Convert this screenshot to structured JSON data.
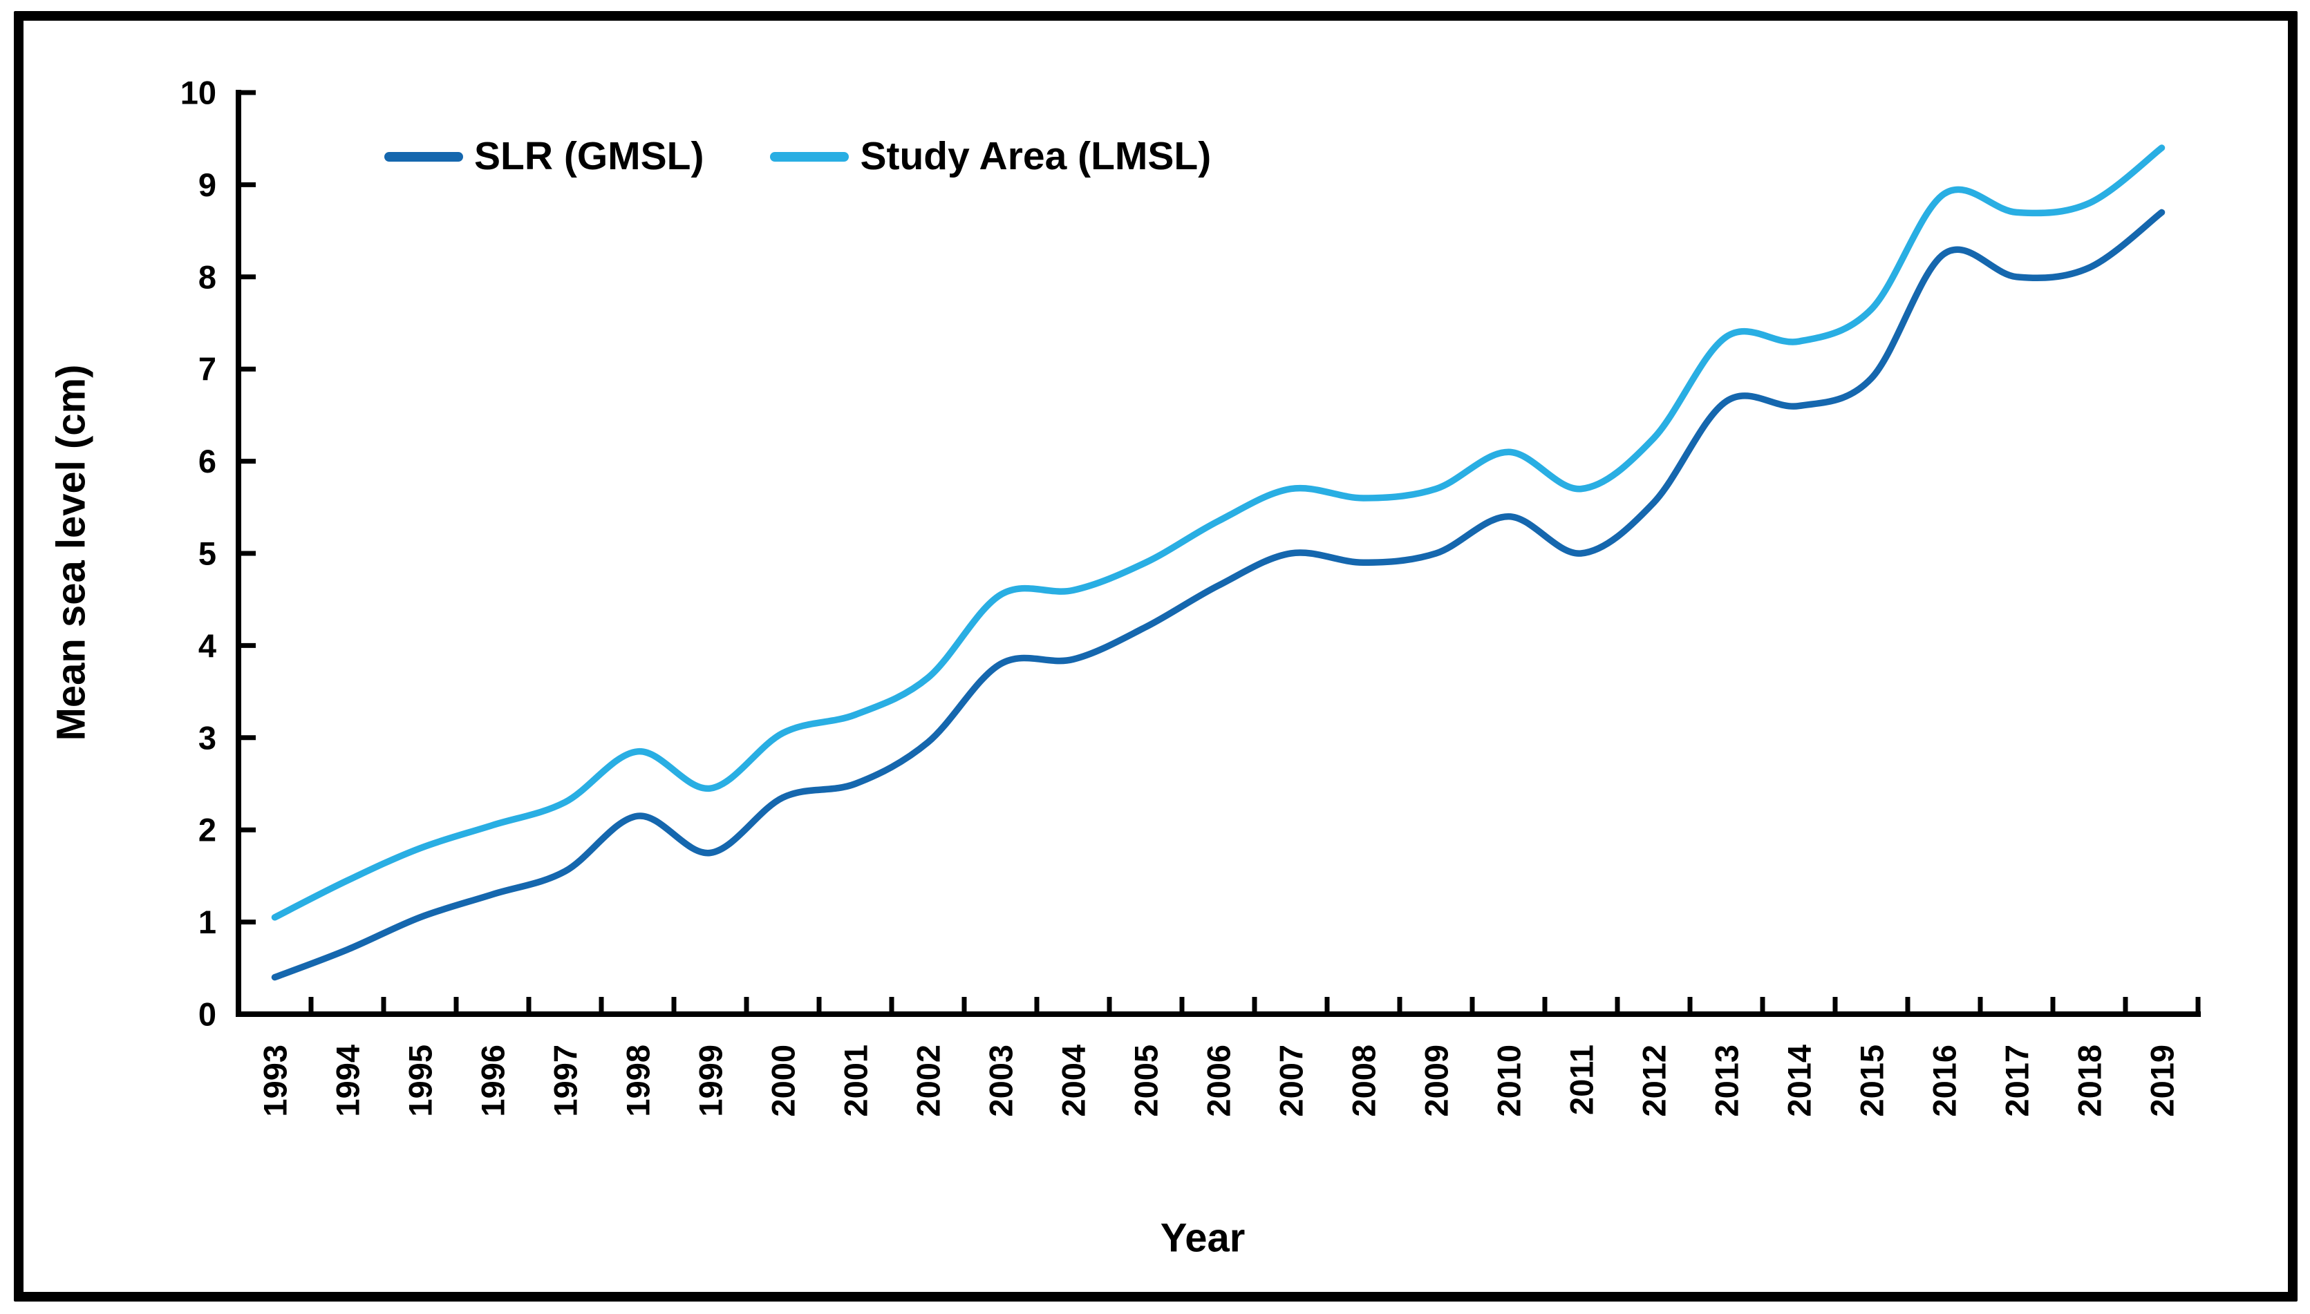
{
  "frame": {
    "border_color": "#000000",
    "background": "#ffffff"
  },
  "chart_data": {
    "type": "line",
    "title": "",
    "xlabel": "Year",
    "ylabel": "Mean sea level (cm)",
    "x": [
      1993,
      1994,
      1995,
      1996,
      1997,
      1998,
      1999,
      2000,
      2001,
      2002,
      2003,
      2004,
      2005,
      2006,
      2007,
      2008,
      2009,
      2010,
      2011,
      2012,
      2013,
      2014,
      2015,
      2016,
      2017,
      2018,
      2019
    ],
    "ylim": [
      0,
      10
    ],
    "yticks": [
      0,
      1,
      2,
      3,
      4,
      5,
      6,
      7,
      8,
      9,
      10
    ],
    "grid": false,
    "legend_position": "top-left",
    "line_style": "smooth",
    "axis_color": "#000000",
    "series": [
      {
        "name": "SLR (GMSL)",
        "color": "#1567ae",
        "values": [
          0.4,
          0.7,
          1.05,
          1.3,
          1.55,
          2.15,
          1.75,
          2.35,
          2.5,
          2.95,
          3.8,
          3.85,
          4.2,
          4.65,
          5.0,
          4.9,
          5.0,
          5.4,
          5.0,
          5.55,
          6.65,
          6.6,
          6.9,
          8.25,
          8.0,
          8.1,
          8.7
        ]
      },
      {
        "name": "Study Area (LMSL)",
        "color": "#29aee3",
        "values": [
          1.05,
          1.45,
          1.8,
          2.05,
          2.3,
          2.85,
          2.45,
          3.05,
          3.25,
          3.65,
          4.55,
          4.6,
          4.9,
          5.35,
          5.7,
          5.6,
          5.7,
          6.1,
          5.7,
          6.25,
          7.35,
          7.3,
          7.65,
          8.9,
          8.7,
          8.8,
          9.4
        ]
      }
    ]
  }
}
